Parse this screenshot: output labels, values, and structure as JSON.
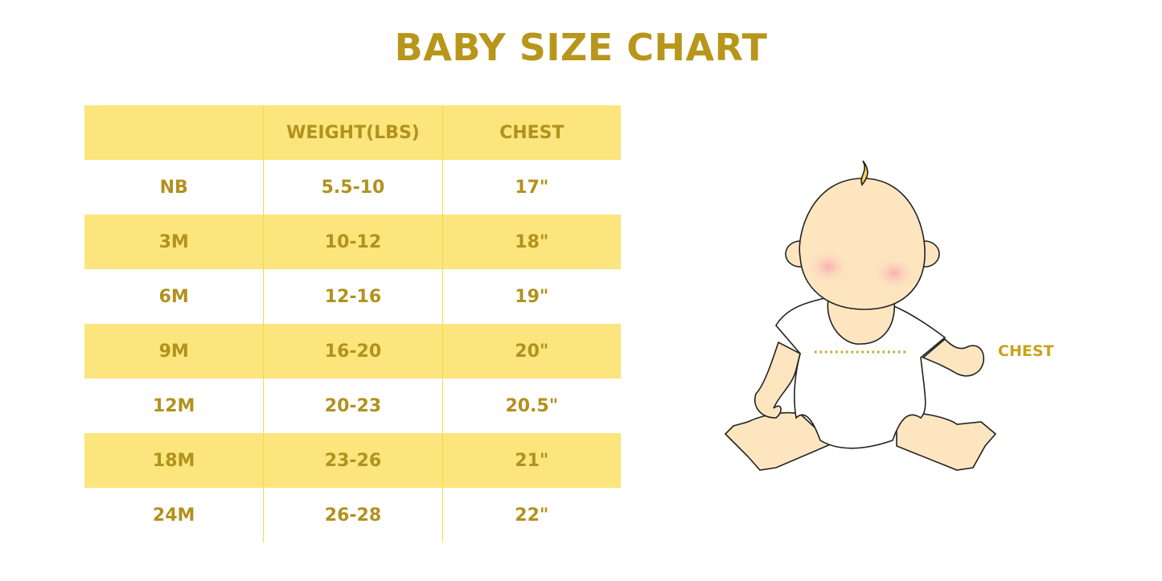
{
  "title": "BABY SIZE CHART",
  "table": {
    "headers": [
      "",
      "WEIGHT(LBS)",
      "CHEST"
    ],
    "rows": [
      [
        "NB",
        "5.5-10",
        "17\""
      ],
      [
        "3M",
        "10-12",
        "18\""
      ],
      [
        "6M",
        "12-16",
        "19\""
      ],
      [
        "9M",
        "16-20",
        "20\""
      ],
      [
        "12M",
        "20-23",
        "20.5\""
      ],
      [
        "18M",
        "23-26",
        "21\""
      ],
      [
        "24M",
        "26-28",
        "22\""
      ]
    ]
  },
  "illustration": {
    "chest_label": "CHEST"
  },
  "colors": {
    "accent": "#b8961c",
    "band": "#fbe57c",
    "skin": "#fde5c0"
  }
}
